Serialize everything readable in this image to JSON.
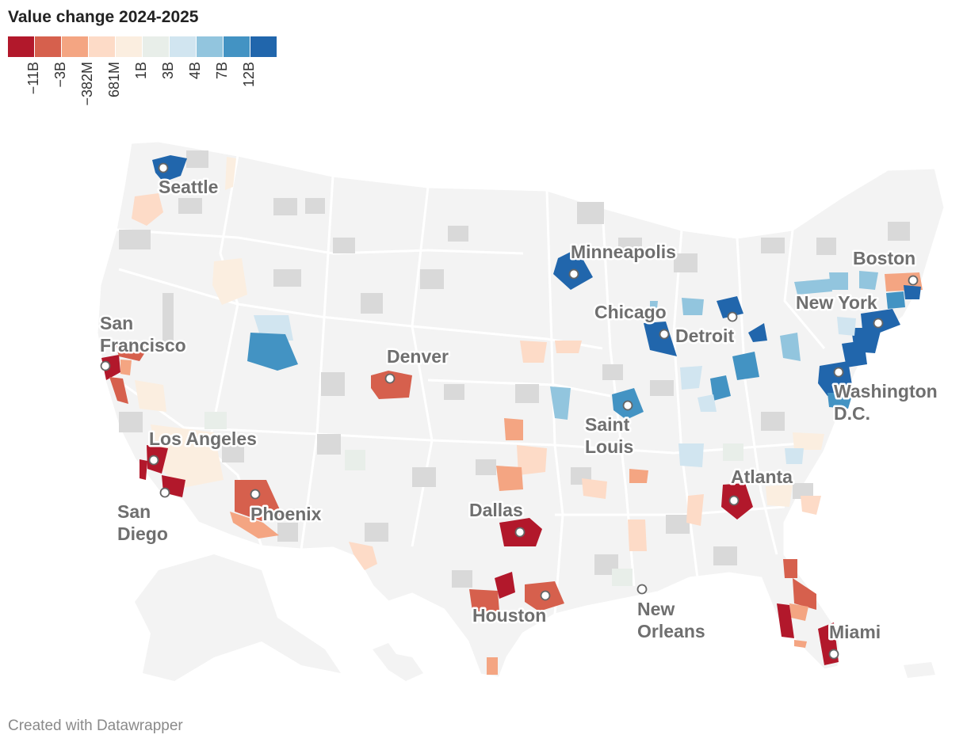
{
  "title": "Value change 2024-2025",
  "legend": {
    "colors": [
      "#b2182b",
      "#d6604d",
      "#f4a582",
      "#fddbc7",
      "#fbeee0",
      "#e8eee9",
      "#d1e5f0",
      "#92c5de",
      "#4393c3",
      "#2166ac"
    ],
    "ticks": [
      "−11B",
      "−3B",
      "−382M",
      "681M",
      "1B",
      "3B",
      "4B",
      "7B",
      "12B"
    ]
  },
  "cities": [
    {
      "id": "seattle",
      "label": "Seattle",
      "lines": [
        "Seattle"
      ]
    },
    {
      "id": "minneapolis",
      "label": "Minneapolis",
      "lines": [
        "Minneapolis"
      ]
    },
    {
      "id": "boston",
      "label": "Boston",
      "lines": [
        "Boston"
      ]
    },
    {
      "id": "new-york",
      "label": "New York",
      "lines": [
        "New York"
      ]
    },
    {
      "id": "chicago",
      "label": "Chicago",
      "lines": [
        "Chicago"
      ]
    },
    {
      "id": "detroit",
      "label": "Detroit",
      "lines": [
        "Detroit"
      ]
    },
    {
      "id": "san-francisco",
      "label": "San Francisco",
      "lines": [
        "San",
        "Francisco"
      ]
    },
    {
      "id": "denver",
      "label": "Denver",
      "lines": [
        "Denver"
      ]
    },
    {
      "id": "washington-dc",
      "label": "Washington D.C.",
      "lines": [
        "Washington",
        "D.C."
      ]
    },
    {
      "id": "saint-louis",
      "label": "Saint Louis",
      "lines": [
        "Saint",
        "Louis"
      ]
    },
    {
      "id": "los-angeles",
      "label": "Los Angeles",
      "lines": [
        "Los Angeles"
      ]
    },
    {
      "id": "atlanta",
      "label": "Atlanta",
      "lines": [
        "Atlanta"
      ]
    },
    {
      "id": "san-diego",
      "label": "San Diego",
      "lines": [
        "San",
        "Diego"
      ]
    },
    {
      "id": "phoenix",
      "label": "Phoenix",
      "lines": [
        "Phoenix"
      ]
    },
    {
      "id": "dallas",
      "label": "Dallas",
      "lines": [
        "Dallas"
      ]
    },
    {
      "id": "houston",
      "label": "Houston",
      "lines": [
        "Houston"
      ]
    },
    {
      "id": "new-orleans",
      "label": "New Orleans",
      "lines": [
        "New",
        "Orleans"
      ]
    },
    {
      "id": "miami",
      "label": "Miami",
      "lines": [
        "Miami"
      ]
    }
  ],
  "footer": "Created with Datawrapper"
}
